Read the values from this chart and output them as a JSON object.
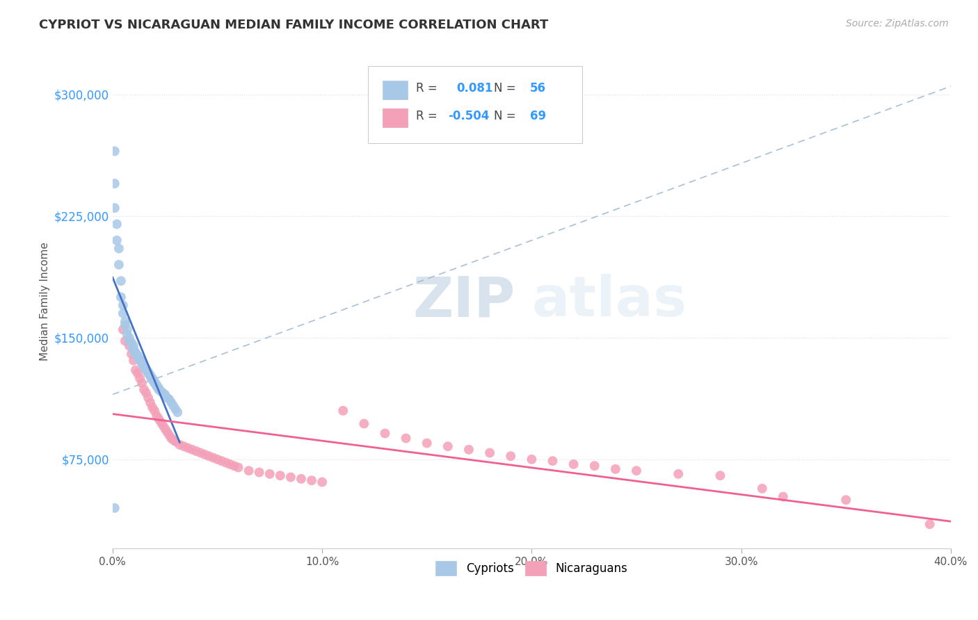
{
  "title": "CYPRIOT VS NICARAGUAN MEDIAN FAMILY INCOME CORRELATION CHART",
  "source": "Source: ZipAtlas.com",
  "ylabel": "Median Family Income",
  "xlim": [
    0.0,
    0.4
  ],
  "ylim": [
    20000,
    325000
  ],
  "yticks": [
    75000,
    150000,
    225000,
    300000
  ],
  "ytick_labels": [
    "$75,000",
    "$150,000",
    "$225,000",
    "$300,000"
  ],
  "xticks": [
    0.0,
    0.1,
    0.2,
    0.3,
    0.4
  ],
  "xtick_labels": [
    "0.0%",
    "10.0%",
    "20.0%",
    "30.0%",
    "40.0%"
  ],
  "cypriot_color": "#a8c8e8",
  "nicaraguan_color": "#f4a0b8",
  "cypriot_R": "0.081",
  "cypriot_N": "56",
  "nicaraguan_R": "-0.504",
  "nicaraguan_N": "69",
  "watermark_zip": "ZIP",
  "watermark_atlas": "atlas",
  "background_color": "#ffffff",
  "dashed_line_color": "#a0b8d0",
  "trend_cypriot_color": "#4472c4",
  "trend_nicaraguan_color": "#f06090",
  "legend_color": "#3399ff",
  "cypriot_points_x": [
    0.001,
    0.001,
    0.001,
    0.002,
    0.002,
    0.003,
    0.003,
    0.004,
    0.004,
    0.005,
    0.005,
    0.006,
    0.006,
    0.007,
    0.007,
    0.008,
    0.008,
    0.009,
    0.009,
    0.01,
    0.01,
    0.01,
    0.011,
    0.011,
    0.012,
    0.012,
    0.013,
    0.013,
    0.014,
    0.014,
    0.015,
    0.015,
    0.016,
    0.016,
    0.017,
    0.017,
    0.018,
    0.018,
    0.019,
    0.019,
    0.02,
    0.02,
    0.021,
    0.021,
    0.022,
    0.022,
    0.023,
    0.024,
    0.025,
    0.026,
    0.027,
    0.028,
    0.029,
    0.03,
    0.031,
    0.001
  ],
  "cypriot_points_y": [
    265000,
    245000,
    230000,
    220000,
    210000,
    205000,
    195000,
    185000,
    175000,
    170000,
    165000,
    160000,
    158000,
    155000,
    152000,
    150000,
    148000,
    147000,
    146000,
    145000,
    143000,
    142000,
    141000,
    140000,
    139000,
    138000,
    137000,
    136000,
    135000,
    134000,
    133000,
    132000,
    131000,
    130000,
    129000,
    128000,
    127000,
    126000,
    125000,
    124000,
    123000,
    122000,
    121000,
    120000,
    119000,
    118000,
    117000,
    116000,
    115000,
    113000,
    112000,
    110000,
    108000,
    106000,
    104000,
    45000
  ],
  "nicaraguan_points_x": [
    0.005,
    0.006,
    0.008,
    0.009,
    0.01,
    0.011,
    0.012,
    0.013,
    0.014,
    0.015,
    0.016,
    0.017,
    0.018,
    0.019,
    0.02,
    0.021,
    0.022,
    0.023,
    0.024,
    0.025,
    0.026,
    0.027,
    0.028,
    0.029,
    0.03,
    0.032,
    0.034,
    0.036,
    0.038,
    0.04,
    0.042,
    0.044,
    0.046,
    0.048,
    0.05,
    0.052,
    0.054,
    0.056,
    0.058,
    0.06,
    0.065,
    0.07,
    0.075,
    0.08,
    0.085,
    0.09,
    0.095,
    0.1,
    0.11,
    0.12,
    0.13,
    0.14,
    0.15,
    0.16,
    0.17,
    0.18,
    0.19,
    0.2,
    0.21,
    0.22,
    0.23,
    0.24,
    0.25,
    0.27,
    0.29,
    0.31,
    0.32,
    0.35,
    0.39
  ],
  "nicaraguan_points_y": [
    155000,
    148000,
    145000,
    140000,
    136000,
    130000,
    128000,
    125000,
    122000,
    118000,
    116000,
    113000,
    110000,
    107000,
    105000,
    102000,
    100000,
    98000,
    96000,
    94000,
    92000,
    90000,
    88000,
    87000,
    86000,
    84000,
    83000,
    82000,
    81000,
    80000,
    79000,
    78000,
    77000,
    76000,
    75000,
    74000,
    73000,
    72000,
    71000,
    70000,
    68000,
    67000,
    66000,
    65000,
    64000,
    63000,
    62000,
    61000,
    105000,
    97000,
    91000,
    88000,
    85000,
    83000,
    81000,
    79000,
    77000,
    75000,
    74000,
    72000,
    71000,
    69000,
    68000,
    66000,
    65000,
    57000,
    52000,
    50000,
    35000
  ]
}
